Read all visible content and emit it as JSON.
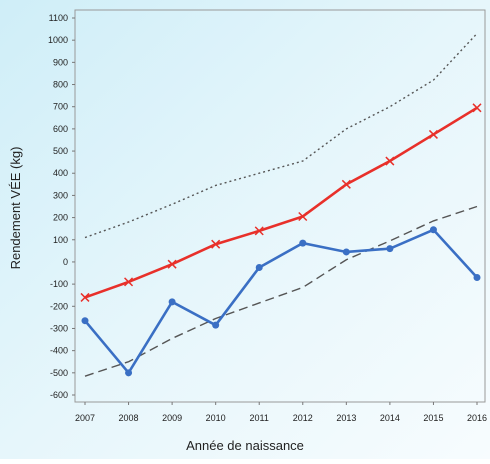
{
  "chart_data": {
    "type": "line",
    "x_label": "Année de naissance",
    "y_label": "Rendement VÉE (kg)",
    "x": [
      2007,
      2008,
      2009,
      2010,
      2011,
      2012,
      2013,
      2014,
      2015,
      2016
    ],
    "xlim": [
      2007,
      2016
    ],
    "xticks": [
      2007,
      2008,
      2009,
      2010,
      2011,
      2012,
      2013,
      2014,
      2015,
      2016
    ],
    "ylim": [
      -600,
      1100
    ],
    "yticks": [
      -600,
      -500,
      -400,
      -300,
      -200,
      -100,
      0,
      100,
      200,
      300,
      400,
      500,
      600,
      700,
      800,
      900,
      1000,
      1100
    ],
    "series": [
      {
        "color": "#555555",
        "dash": "dotted",
        "marker": "none",
        "values": [
          110,
          180,
          260,
          345,
          400,
          455,
          600,
          700,
          820,
          1030
        ]
      },
      {
        "color": "#555555",
        "dash": "dashed",
        "marker": "none",
        "values": [
          -515,
          -450,
          -345,
          -255,
          -185,
          -115,
          10,
          95,
          185,
          250
        ]
      },
      {
        "color": "#e8302a",
        "dash": "solid",
        "marker": "x",
        "values": [
          -160,
          -90,
          -10,
          80,
          140,
          205,
          350,
          455,
          575,
          695
        ]
      },
      {
        "color": "#3a6fc4",
        "dash": "solid",
        "marker": "circle",
        "values": [
          -265,
          -500,
          -180,
          -285,
          -25,
          85,
          45,
          60,
          145,
          -70
        ]
      }
    ]
  }
}
